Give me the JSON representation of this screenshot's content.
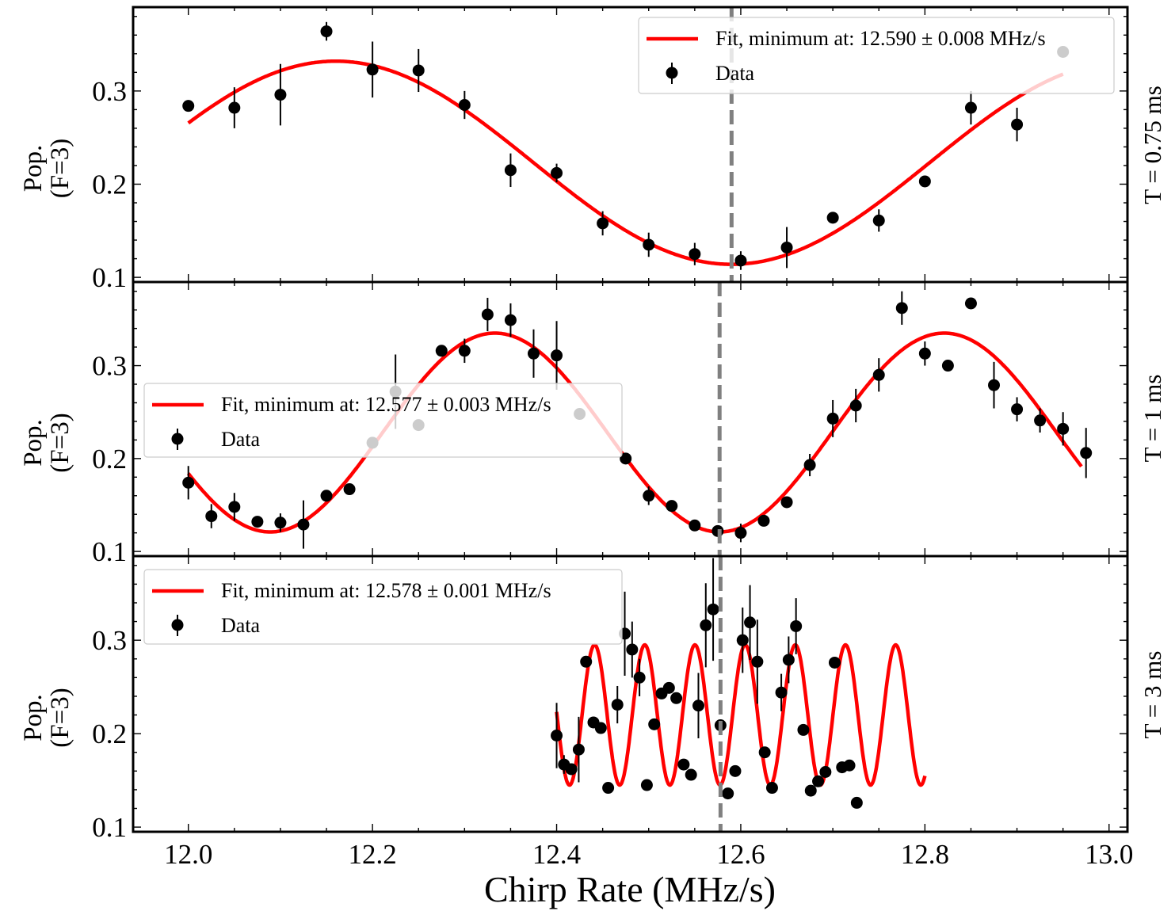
{
  "chart_data": [
    {
      "type": "scatter",
      "panel_label": "T = 0.75 ms",
      "ylabel": "Pop.\n(F=3)",
      "ylim": [
        0.095,
        0.39
      ],
      "yticks": [
        "0.1",
        "0.2",
        "0.3"
      ],
      "minimum": 12.59,
      "legend": {
        "fit": "Fit, minimum at: 12.590 ± 0.008 MHz/s",
        "data": "Data",
        "position": "top-right"
      },
      "fit": {
        "min": 12.59,
        "period": 0.86,
        "mean": 0.223,
        "amp": 0.109,
        "x_range": [
          12.0,
          12.95
        ]
      },
      "series": [
        {
          "name": "Data",
          "points": [
            [
              12.0,
              0.284,
              0.0
            ],
            [
              12.05,
              0.282,
              0.022
            ],
            [
              12.1,
              0.296,
              0.033
            ],
            [
              12.15,
              0.364,
              0.01
            ],
            [
              12.2,
              0.323,
              0.03
            ],
            [
              12.25,
              0.322,
              0.023
            ],
            [
              12.3,
              0.285,
              0.015
            ],
            [
              12.35,
              0.215,
              0.018
            ],
            [
              12.4,
              0.212,
              0.01
            ],
            [
              12.45,
              0.158,
              0.013
            ],
            [
              12.5,
              0.135,
              0.013
            ],
            [
              12.55,
              0.125,
              0.012
            ],
            [
              12.6,
              0.118,
              0.01
            ],
            [
              12.65,
              0.132,
              0.022
            ],
            [
              12.7,
              0.164,
              0.0
            ],
            [
              12.75,
              0.161,
              0.012
            ],
            [
              12.8,
              0.203,
              0.0
            ],
            [
              12.85,
              0.282,
              0.018
            ],
            [
              12.9,
              0.264,
              0.018
            ],
            [
              12.95,
              0.342,
              0.0
            ]
          ]
        }
      ]
    },
    {
      "type": "scatter",
      "panel_label": "T = 1 ms",
      "ylabel": "Pop.\n(F=3)",
      "ylim": [
        0.095,
        0.39
      ],
      "yticks": [
        "0.1",
        "0.2",
        "0.3"
      ],
      "minimum": 12.577,
      "legend": {
        "fit": "Fit, minimum at: 12.577 ± 0.003 MHz/s",
        "data": "Data",
        "position": "center-left"
      },
      "fit": {
        "min": 12.577,
        "period": 0.488,
        "mean": 0.228,
        "amp": 0.107,
        "x_range": [
          12.0,
          12.97
        ]
      },
      "series": [
        {
          "name": "Data",
          "points": [
            [
              12.0,
              0.174,
              0.018
            ],
            [
              12.025,
              0.138,
              0.013
            ],
            [
              12.05,
              0.148,
              0.015
            ],
            [
              12.075,
              0.132,
              0.0
            ],
            [
              12.1,
              0.131,
              0.01
            ],
            [
              12.125,
              0.129,
              0.026
            ],
            [
              12.15,
              0.16,
              0.0
            ],
            [
              12.175,
              0.167,
              0.0
            ],
            [
              12.2,
              0.217,
              0.0
            ],
            [
              12.225,
              0.272,
              0.04
            ],
            [
              12.25,
              0.236,
              0.0
            ],
            [
              12.275,
              0.316,
              0.0
            ],
            [
              12.3,
              0.316,
              0.013
            ],
            [
              12.325,
              0.355,
              0.018
            ],
            [
              12.35,
              0.349,
              0.018
            ],
            [
              12.375,
              0.313,
              0.026
            ],
            [
              12.4,
              0.311,
              0.037
            ],
            [
              12.425,
              0.248,
              0.0
            ],
            [
              12.475,
              0.2,
              0.0
            ],
            [
              12.5,
              0.16,
              0.01
            ],
            [
              12.525,
              0.149,
              0.0
            ],
            [
              12.55,
              0.128,
              0.0
            ],
            [
              12.575,
              0.122,
              0.0
            ],
            [
              12.6,
              0.12,
              0.01
            ],
            [
              12.625,
              0.133,
              0.0
            ],
            [
              12.65,
              0.153,
              0.0
            ],
            [
              12.675,
              0.193,
              0.012
            ],
            [
              12.7,
              0.243,
              0.02
            ],
            [
              12.725,
              0.257,
              0.018
            ],
            [
              12.75,
              0.29,
              0.018
            ],
            [
              12.775,
              0.362,
              0.018
            ],
            [
              12.8,
              0.313,
              0.013
            ],
            [
              12.825,
              0.3,
              0.0
            ],
            [
              12.85,
              0.367,
              0.0
            ],
            [
              12.875,
              0.279,
              0.025
            ],
            [
              12.9,
              0.253,
              0.013
            ],
            [
              12.925,
              0.241,
              0.013
            ],
            [
              12.95,
              0.232,
              0.018
            ],
            [
              12.975,
              0.206,
              0.027
            ]
          ]
        }
      ]
    },
    {
      "type": "scatter",
      "panel_label": "T = 3 ms",
      "ylabel": "Pop.\n(F=3)",
      "ylim": [
        0.095,
        0.39
      ],
      "yticks": [
        "0.1",
        "0.2",
        "0.3"
      ],
      "minimum": 12.578,
      "legend": {
        "fit": "Fit, minimum at: 12.578 ± 0.001 MHz/s",
        "data": "Data",
        "position": "top-left"
      },
      "fit": {
        "min": 12.5775,
        "period": 0.0545,
        "mean": 0.22,
        "amp": 0.075,
        "x_range": [
          12.4,
          12.8
        ]
      },
      "series": [
        {
          "name": "Data",
          "points": [
            [
              12.4,
              0.198,
              0.035
            ],
            [
              12.408,
              0.167,
              0.01
            ],
            [
              12.416,
              0.162,
              0.0
            ],
            [
              12.424,
              0.183,
              0.035
            ],
            [
              12.432,
              0.277,
              0.0
            ],
            [
              12.44,
              0.212,
              0.0
            ],
            [
              12.448,
              0.206,
              0.0
            ],
            [
              12.456,
              0.142,
              0.0
            ],
            [
              12.466,
              0.231,
              0.02
            ],
            [
              12.474,
              0.307,
              0.045
            ],
            [
              12.482,
              0.29,
              0.03
            ],
            [
              12.49,
              0.26,
              0.02
            ],
            [
              12.498,
              0.145,
              0.0
            ],
            [
              12.506,
              0.21,
              0.0
            ],
            [
              12.514,
              0.243,
              0.0
            ],
            [
              12.522,
              0.249,
              0.0
            ],
            [
              12.53,
              0.238,
              0.0
            ],
            [
              12.538,
              0.167,
              0.0
            ],
            [
              12.546,
              0.156,
              0.0
            ],
            [
              12.554,
              0.23,
              0.035
            ],
            [
              12.562,
              0.316,
              0.045
            ],
            [
              12.57,
              0.333,
              0.055
            ],
            [
              12.578,
              0.209,
              0.0
            ],
            [
              12.586,
              0.136,
              0.0
            ],
            [
              12.594,
              0.16,
              0.0
            ],
            [
              12.602,
              0.3,
              0.035
            ],
            [
              12.61,
              0.319,
              0.04
            ],
            [
              12.618,
              0.277,
              0.045
            ],
            [
              12.626,
              0.18,
              0.0
            ],
            [
              12.634,
              0.142,
              0.0
            ],
            [
              12.644,
              0.244,
              0.02
            ],
            [
              12.652,
              0.279,
              0.025
            ],
            [
              12.66,
              0.315,
              0.03
            ],
            [
              12.668,
              0.204,
              0.0
            ],
            [
              12.676,
              0.139,
              0.0
            ],
            [
              12.684,
              0.149,
              0.0
            ],
            [
              12.692,
              0.159,
              0.0
            ],
            [
              12.702,
              0.276,
              0.0
            ],
            [
              12.71,
              0.164,
              0.0
            ],
            [
              12.718,
              0.166,
              0.0
            ],
            [
              12.726,
              0.126,
              0.0
            ]
          ]
        }
      ]
    }
  ],
  "x_axis": {
    "label": "Chirp Rate (MHz/s)",
    "range": [
      11.94,
      13.02
    ],
    "ticks": [
      {
        "value": 12.0,
        "label": "12.0"
      },
      {
        "value": 12.2,
        "label": "12.2"
      },
      {
        "value": 12.4,
        "label": "12.4"
      },
      {
        "value": 12.6,
        "label": "12.6"
      },
      {
        "value": 12.8,
        "label": "12.8"
      },
      {
        "value": 13.0,
        "label": "13.0"
      }
    ]
  },
  "colors": {
    "fit": "#ff0000",
    "data": "#000000",
    "min_line": "#808080"
  }
}
